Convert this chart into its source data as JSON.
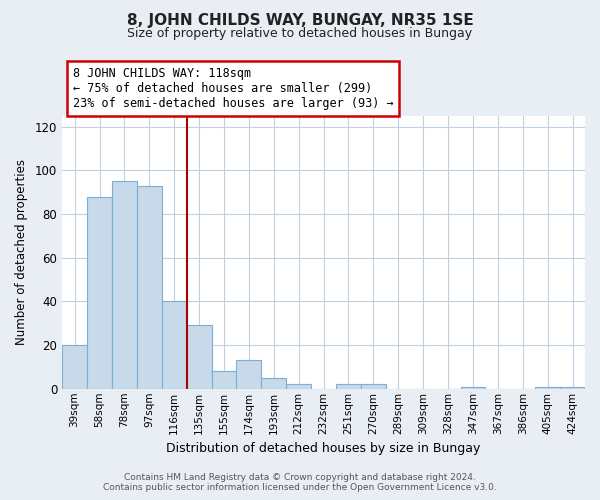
{
  "title": "8, JOHN CHILDS WAY, BUNGAY, NR35 1SE",
  "subtitle": "Size of property relative to detached houses in Bungay",
  "xlabel": "Distribution of detached houses by size in Bungay",
  "ylabel": "Number of detached properties",
  "bar_labels": [
    "39sqm",
    "58sqm",
    "78sqm",
    "97sqm",
    "116sqm",
    "135sqm",
    "155sqm",
    "174sqm",
    "193sqm",
    "212sqm",
    "232sqm",
    "251sqm",
    "270sqm",
    "289sqm",
    "309sqm",
    "328sqm",
    "347sqm",
    "367sqm",
    "386sqm",
    "405sqm",
    "424sqm"
  ],
  "bar_values": [
    20,
    88,
    95,
    93,
    40,
    29,
    8,
    13,
    5,
    2,
    0,
    2,
    2,
    0,
    0,
    0,
    1,
    0,
    0,
    1,
    1
  ],
  "bar_color": "#c8d9ea",
  "bar_edge_color": "#7bafd4",
  "highlight_index": 4,
  "highlight_line_color": "#aa0000",
  "ylim": [
    0,
    125
  ],
  "yticks": [
    0,
    20,
    40,
    60,
    80,
    100,
    120
  ],
  "annotation_lines": [
    "8 JOHN CHILDS WAY: 118sqm",
    "← 75% of detached houses are smaller (299)",
    "23% of semi-detached houses are larger (93) →"
  ],
  "annotation_box_color": "#ffffff",
  "annotation_border_color": "#cc0000",
  "footer_line1": "Contains HM Land Registry data © Crown copyright and database right 2024.",
  "footer_line2": "Contains public sector information licensed under the Open Government Licence v3.0.",
  "background_color": "#e8eef4",
  "plot_bg_color": "#ffffff",
  "grid_color": "#c0d0e0"
}
